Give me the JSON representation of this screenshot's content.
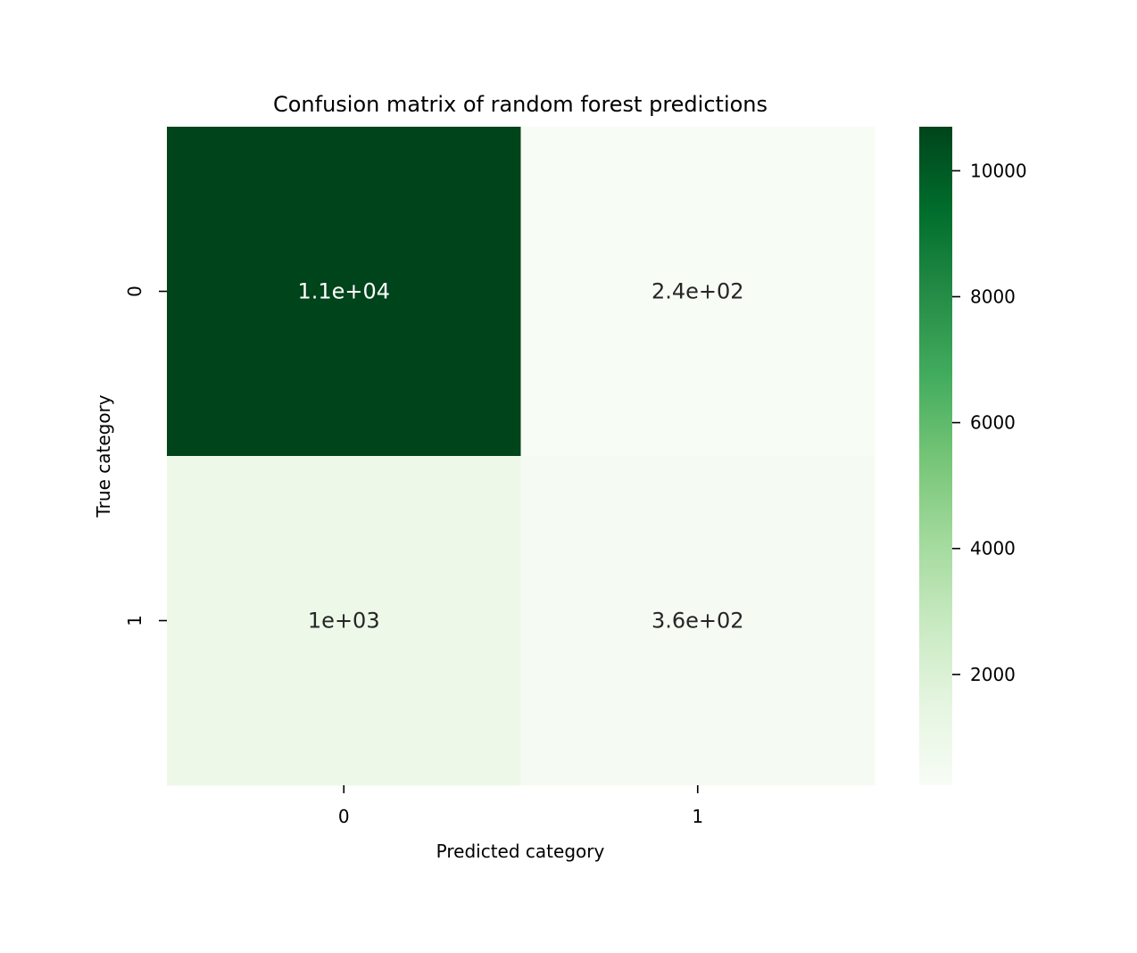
{
  "chart_data": {
    "type": "heatmap",
    "title": "Confusion matrix of random forest predictions",
    "xlabel": "Predicted category",
    "ylabel": "True category",
    "x_categories": [
      "0",
      "1"
    ],
    "y_categories": [
      "0",
      "1"
    ],
    "values": [
      [
        10700,
        240
      ],
      [
        1000,
        360
      ]
    ],
    "annotations": [
      [
        "1.1e+04",
        "2.4e+02"
      ],
      [
        "1e+03",
        "3.6e+02"
      ]
    ],
    "colormap": "Greens",
    "colorbar": {
      "min": 240,
      "max": 10700,
      "ticks": [
        2000,
        4000,
        6000,
        8000,
        10000
      ],
      "tick_labels": [
        "2000",
        "4000",
        "6000",
        "8000",
        "10000"
      ]
    }
  }
}
